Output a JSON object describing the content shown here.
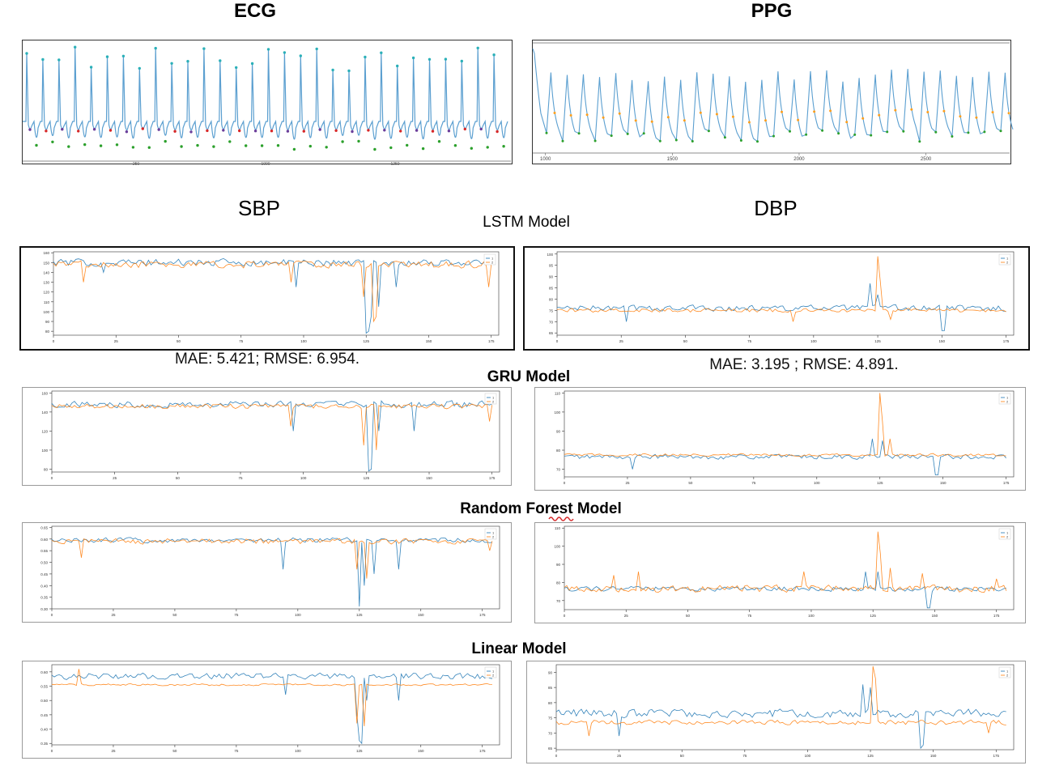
{
  "headings": {
    "ecg": "ECG",
    "ppg": "PPG",
    "sbp": "SBP",
    "dbp": "DBP"
  },
  "models": {
    "lstm": "LSTM Model",
    "gru": "GRU Model",
    "rf": "Random Forest Model",
    "linear": "Linear Model"
  },
  "metrics": {
    "lstm_sbp": "MAE: 5.421; RMSE: 6.954.",
    "lstm_dbp": "MAE: 3.195 ; RMSE: 4.891."
  },
  "colors": {
    "series1": "#1f77b4",
    "series2": "#ff7f0e",
    "ecg_line": "#5b9fd0",
    "peak": "#2ab0b8",
    "red_marker": "#d62728",
    "purple_marker": "#6a3d9a",
    "green_marker": "#2ca02c",
    "orange_marker": "#ff9f1c"
  },
  "chart_data": [
    {
      "id": "ecg",
      "type": "line",
      "title": "ECG",
      "description_series": "ECG signal with R-peak (top), red, purple and green fiducial markers",
      "x_tick_labels": [
        "250",
        "1000",
        "1250"
      ],
      "beats": 30
    },
    {
      "id": "ppg",
      "type": "line",
      "title": "PPG",
      "x_tick_labels": [
        "1000",
        "1500",
        "2000",
        "2500"
      ],
      "xlim": [
        950,
        2830
      ],
      "beats": 29
    },
    {
      "id": "lstm_sbp",
      "type": "line",
      "group": "LSTM Model",
      "title": "SBP",
      "x_ticks": [
        0,
        25,
        50,
        75,
        100,
        125,
        150,
        175
      ],
      "y_ticks": [
        80,
        90,
        100,
        110,
        120,
        130,
        140,
        150,
        160
      ],
      "xlim": [
        0,
        178
      ],
      "ylim": [
        76,
        161
      ],
      "legend": [
        "1",
        "2"
      ],
      "series": [
        {
          "name": "1",
          "base": 150,
          "noise": 4,
          "dips": [
            [
              20,
              140
            ],
            [
              97,
              125
            ],
            [
              125,
              78
            ],
            [
              126,
              80
            ],
            [
              127,
              95
            ],
            [
              130,
              105
            ],
            [
              137,
              125
            ]
          ]
        },
        {
          "name": "2",
          "base": 148,
          "noise": 4,
          "dips": [
            [
              12,
              130
            ],
            [
              95,
              130
            ],
            [
              124,
              115
            ],
            [
              128,
              90
            ],
            [
              129,
              95
            ],
            [
              174,
              125
            ]
          ]
        }
      ],
      "metric": "MAE: 5.421; RMSE: 6.954."
    },
    {
      "id": "lstm_dbp",
      "type": "line",
      "group": "LSTM Model",
      "title": "DBP",
      "x_ticks": [
        0,
        25,
        50,
        75,
        100,
        125,
        150,
        175
      ],
      "y_ticks": [
        65,
        70,
        75,
        80,
        85,
        90,
        95,
        100
      ],
      "xlim": [
        0,
        178
      ],
      "ylim": [
        64,
        101
      ],
      "legend": [
        "1",
        "2"
      ],
      "series": [
        {
          "name": "1",
          "base": 76,
          "noise": 1.5,
          "peaks": [
            [
              122,
              87
            ],
            [
              125,
              82
            ]
          ],
          "dips": [
            [
              27,
              70
            ],
            [
              150,
              66
            ],
            [
              151,
              66
            ]
          ]
        },
        {
          "name": "2",
          "base": 75,
          "noise": 1,
          "peaks": [
            [
              125,
              99
            ],
            [
              126,
              88
            ]
          ],
          "dips": [
            [
              92,
              70
            ],
            [
              130,
              71
            ],
            [
              176,
              71
            ]
          ]
        }
      ],
      "metric": "MAE: 3.195 ; RMSE: 4.891."
    },
    {
      "id": "gru_sbp",
      "type": "line",
      "group": "GRU Model",
      "x_ticks": [
        0,
        25,
        50,
        75,
        100,
        125,
        150,
        175
      ],
      "y_ticks": [
        80,
        100,
        120,
        140,
        160
      ],
      "xlim": [
        0,
        178
      ],
      "ylim": [
        77,
        162
      ],
      "legend": [
        "1",
        "2"
      ],
      "series": [
        {
          "name": "1",
          "base": 148,
          "noise": 4,
          "dips": [
            [
              96,
              120
            ],
            [
              126,
              78
            ],
            [
              127,
              80
            ],
            [
              130,
              120
            ],
            [
              144,
              120
            ]
          ]
        },
        {
          "name": "2",
          "base": 146,
          "noise": 3,
          "dips": [
            [
              95,
              125
            ],
            [
              124,
              105
            ],
            [
              129,
              100
            ],
            [
              174,
              130
            ]
          ]
        }
      ]
    },
    {
      "id": "gru_dbp",
      "type": "line",
      "group": "GRU Model",
      "x_ticks": [
        0,
        25,
        50,
        75,
        100,
        125,
        150,
        175
      ],
      "y_ticks": [
        70,
        80,
        90,
        100,
        110
      ],
      "xlim": [
        0,
        178
      ],
      "ylim": [
        66,
        111
      ],
      "legend": [
        "1",
        "2"
      ],
      "series": [
        {
          "name": "1",
          "base": 76.5,
          "noise": 1.4,
          "peaks": [
            [
              122,
              86
            ],
            [
              126,
              85
            ]
          ],
          "dips": [
            [
              27,
              70
            ],
            [
              147,
              67
            ],
            [
              148,
              67
            ]
          ]
        },
        {
          "name": "2",
          "base": 77.5,
          "noise": 0.8,
          "peaks": [
            [
              125,
              110
            ],
            [
              126,
              95
            ],
            [
              129,
              86
            ]
          ]
        }
      ]
    },
    {
      "id": "rf_sbp",
      "type": "line",
      "group": "Random Forest Model",
      "x_ticks": [
        0,
        25,
        50,
        75,
        100,
        125,
        150,
        175
      ],
      "y_ticks": [
        0.3,
        0.35,
        0.4,
        0.45,
        0.5,
        0.55,
        0.6,
        0.65
      ],
      "xlim": [
        0,
        182
      ],
      "ylim": [
        0.3,
        0.655
      ],
      "legend": [
        "1",
        "2"
      ],
      "series": [
        {
          "name": "1",
          "base": 0.595,
          "noise": 0.012,
          "dips": [
            [
              94,
              0.47
            ],
            [
              125,
              0.31
            ],
            [
              127,
              0.4
            ],
            [
              131,
              0.45
            ],
            [
              141,
              0.47
            ]
          ]
        },
        {
          "name": "2",
          "base": 0.59,
          "noise": 0.013,
          "dips": [
            [
              12,
              0.52
            ],
            [
              124,
              0.47
            ],
            [
              128,
              0.43
            ],
            [
              178,
              0.55
            ]
          ]
        }
      ]
    },
    {
      "id": "rf_dbp",
      "type": "line",
      "group": "Random Forest Model",
      "x_ticks": [
        0,
        25,
        50,
        75,
        100,
        125,
        150,
        175
      ],
      "y_ticks": [
        70,
        80,
        90,
        100,
        110
      ],
      "xlim": [
        0,
        182
      ],
      "ylim": [
        65,
        111
      ],
      "legend": [
        "1",
        "2"
      ],
      "series": [
        {
          "name": "1",
          "base": 76.5,
          "noise": 1.5,
          "peaks": [
            [
              122,
              86
            ],
            [
              127,
              86
            ]
          ],
          "dips": [
            [
              147,
              66
            ],
            [
              148,
              66
            ]
          ]
        },
        {
          "name": "2",
          "base": 76.5,
          "noise": 2.2,
          "peaks": [
            [
              127,
              108
            ],
            [
              128,
              96
            ],
            [
              97,
              86
            ],
            [
              20,
              84
            ],
            [
              30,
              86
            ],
            [
              132,
              88
            ],
            [
              145,
              85
            ],
            [
              175,
              82
            ]
          ]
        }
      ]
    },
    {
      "id": "linear_sbp",
      "type": "line",
      "group": "Linear Model",
      "x_ticks": [
        0,
        25,
        50,
        75,
        100,
        125,
        150,
        175
      ],
      "y_ticks": [
        0.35,
        0.4,
        0.45,
        0.5,
        0.55,
        0.6
      ],
      "xlim": [
        0,
        182
      ],
      "ylim": [
        0.345,
        0.625
      ],
      "legend": [
        "1",
        "2"
      ],
      "series": [
        {
          "name": "1",
          "base": 0.585,
          "noise": 0.012,
          "dips": [
            [
              95,
              0.52
            ],
            [
              124,
              0.45
            ],
            [
              125,
              0.36
            ],
            [
              126,
              0.35
            ],
            [
              128,
              0.5
            ],
            [
              141,
              0.5
            ]
          ]
        },
        {
          "name": "2",
          "base": 0.555,
          "noise": 0.004,
          "peaks": [
            [
              11,
              0.61
            ]
          ],
          "dips": [
            [
              124,
              0.42
            ],
            [
              127,
              0.41
            ]
          ]
        }
      ]
    },
    {
      "id": "linear_dbp",
      "type": "line",
      "group": "Linear Model",
      "x_ticks": [
        0,
        25,
        50,
        75,
        100,
        125,
        150,
        175
      ],
      "y_ticks": [
        65,
        70,
        75,
        80,
        85,
        90
      ],
      "xlim": [
        0,
        182
      ],
      "ylim": [
        64.5,
        92.5
      ],
      "legend": [
        "1",
        "2"
      ],
      "series": [
        {
          "name": "1",
          "base": 76.5,
          "noise": 1.6,
          "peaks": [
            [
              122,
              86
            ],
            [
              125,
              85
            ]
          ],
          "dips": [
            [
              25,
              69
            ],
            [
              145,
              65
            ],
            [
              146,
              66
            ]
          ]
        },
        {
          "name": "2",
          "base": 73.5,
          "noise": 0.9,
          "peaks": [
            [
              126,
              92
            ],
            [
              127,
              88
            ]
          ],
          "dips": [
            [
              13,
              69
            ],
            [
              172,
              70
            ]
          ]
        }
      ]
    }
  ]
}
